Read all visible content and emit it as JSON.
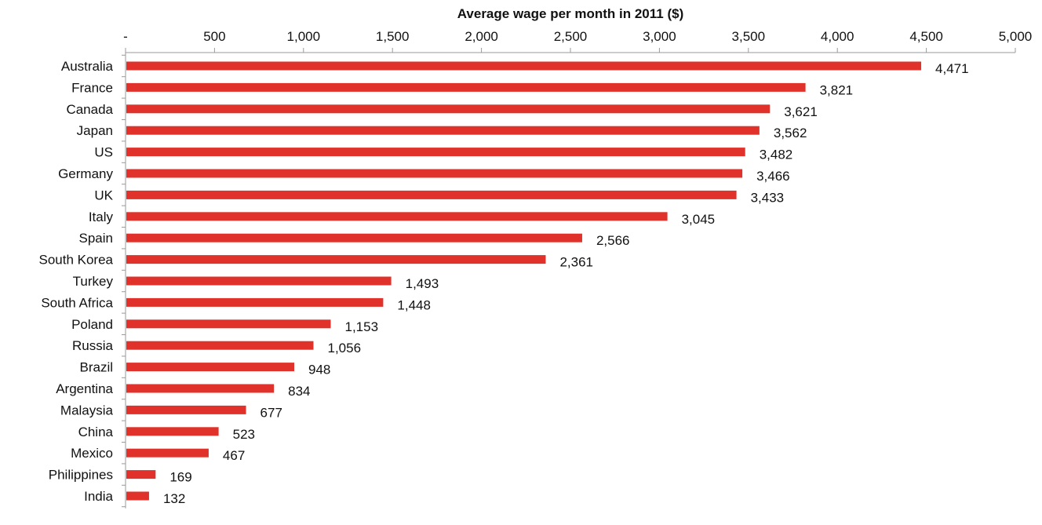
{
  "chart_data": {
    "type": "bar",
    "orientation": "horizontal",
    "title": "Average wage per month in 2011 ($)",
    "xlabel": "Average wage per month in 2011 ($)",
    "ylabel": "",
    "xlim": [
      0,
      5000
    ],
    "x_tick_values": [
      0,
      500,
      1000,
      1500,
      2000,
      2500,
      3000,
      3500,
      4000,
      4500,
      5000
    ],
    "x_tick_labels": [
      "-",
      "500",
      "1,000",
      "1,500",
      "2,000",
      "2,500",
      "3,000",
      "3,500",
      "4,000",
      "4,500",
      "5,000"
    ],
    "axis_position": "top",
    "grid": false,
    "bar_color": "#e0322a",
    "categories": [
      "Australia",
      "France",
      "Canada",
      "Japan",
      "US",
      "Germany",
      "UK",
      "Italy",
      "Spain",
      "South Korea",
      "Turkey",
      "South Africa",
      "Poland",
      "Russia",
      "Brazil",
      "Argentina",
      "Malaysia",
      "China",
      "Mexico",
      "Philippines",
      "India"
    ],
    "values": [
      4471,
      3821,
      3621,
      3562,
      3482,
      3466,
      3433,
      3045,
      2566,
      2361,
      1493,
      1448,
      1153,
      1056,
      948,
      834,
      677,
      523,
      467,
      169,
      132
    ],
    "value_labels": [
      "4,471",
      "3,821",
      "3,621",
      "3,562",
      "3,482",
      "3,466",
      "3,433",
      "3,045",
      "2,566",
      "2,361",
      "1,493",
      "1,448",
      "1,153",
      "1,056",
      "948",
      "834",
      "677",
      "523",
      "467",
      "169",
      "132"
    ]
  }
}
